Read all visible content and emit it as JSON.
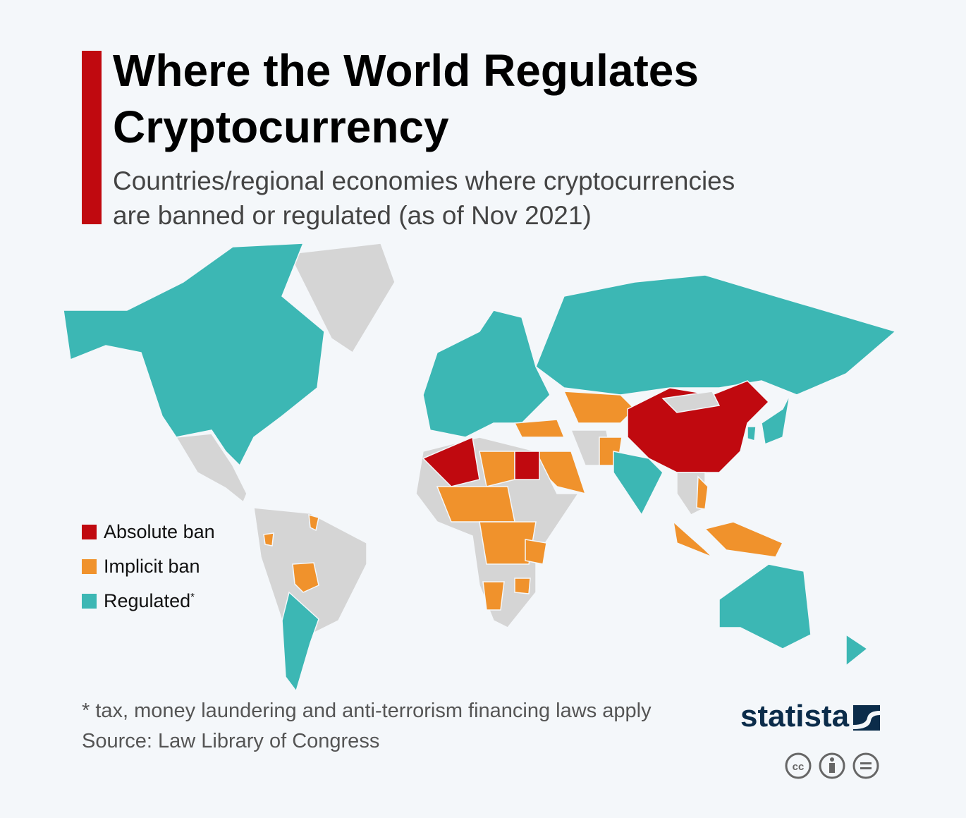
{
  "header": {
    "title_lines": [
      "Where the World Regulates",
      "Cryptocurrency"
    ],
    "subtitle_lines": [
      "Countries/regional economies where cryptocurrencies",
      "are banned or regulated (as of Nov 2021)"
    ]
  },
  "legend": {
    "items": [
      {
        "label": "Absolute ban",
        "color": "#c0090f"
      },
      {
        "label": "Implicit ban",
        "color": "#f0922c"
      },
      {
        "label": "Regulated",
        "marker": "*",
        "color": "#3cb7b4"
      }
    ]
  },
  "other_color": "#d5d5d5",
  "footer": {
    "note": "* tax, money laundering and anti-terrorism financing laws apply",
    "source": "Source: Law Library of Congress",
    "brand": "statista"
  }
}
